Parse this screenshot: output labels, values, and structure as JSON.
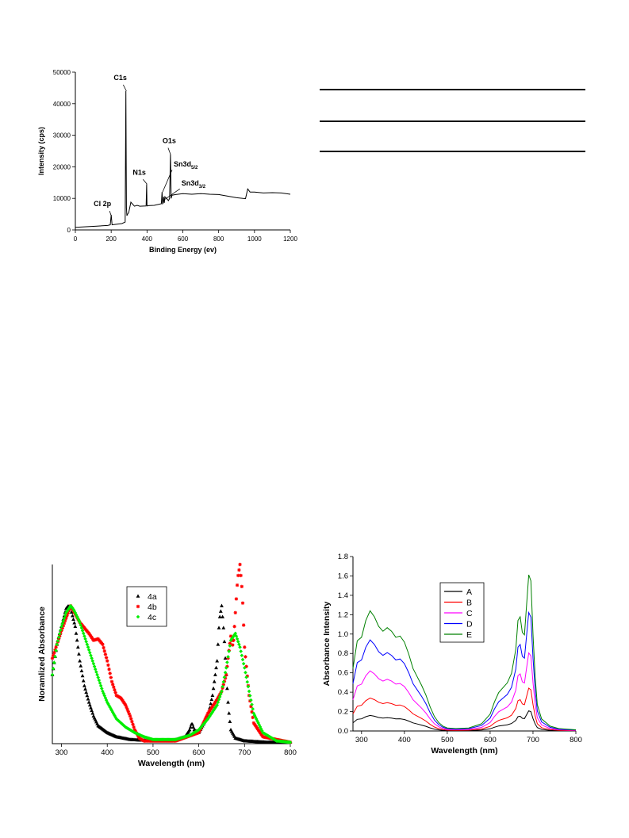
{
  "chart_data": [
    {
      "id": "xps",
      "type": "line",
      "xlabel": "Binding Energy (ev)",
      "ylabel": "Intensity (cps)",
      "xlim": [
        0,
        1200
      ],
      "ylim": [
        0,
        50000
      ],
      "xticks": [
        0,
        200,
        400,
        600,
        800,
        1000,
        1200
      ],
      "yticks": [
        0,
        10000,
        20000,
        30000,
        40000,
        50000
      ],
      "grid": false,
      "annotations": [
        {
          "text": "C1s",
          "sub": "",
          "x": 285,
          "y": 44000
        },
        {
          "text": "O1s",
          "sub": "",
          "x": 531,
          "y": 24000
        },
        {
          "text": "N1s",
          "sub": "",
          "x": 400,
          "y": 14500
        },
        {
          "text": "Sn3d",
          "sub": "5/2",
          "x": 487,
          "y": 12000
        },
        {
          "text": "Sn3d",
          "sub": "3/2",
          "x": 495,
          "y": 9500
        },
        {
          "text": "Cl 2p",
          "sub": "",
          "x": 200,
          "y": 4500
        }
      ],
      "series": [
        {
          "color": "#000000",
          "x": [
            0,
            60,
            120,
            180,
            195,
            200,
            205,
            215,
            260,
            278,
            282,
            285,
            288,
            292,
            298,
            310,
            330,
            345,
            360,
            395,
            398,
            400,
            402,
            405,
            440,
            480,
            484,
            487,
            490,
            493,
            497,
            500,
            520,
            526,
            531,
            535,
            540,
            560,
            600,
            650,
            700,
            750,
            800,
            850,
            900,
            950,
            962,
            975,
            1000,
            1050,
            1100,
            1150,
            1200
          ],
          "y": [
            800,
            1000,
            1200,
            1400,
            1600,
            4800,
            1600,
            1700,
            2000,
            2500,
            44000,
            7000,
            4500,
            5000,
            5500,
            8800,
            7500,
            7800,
            7500,
            7600,
            14500,
            7800,
            7600,
            7700,
            7800,
            8300,
            12000,
            8300,
            8500,
            10500,
            8600,
            10500,
            9300,
            10000,
            24000,
            10000,
            11000,
            11200,
            11500,
            11300,
            11500,
            11300,
            11200,
            10700,
            10200,
            9900,
            13000,
            12000,
            12000,
            11700,
            11800,
            11700,
            11300
          ]
        }
      ]
    },
    {
      "id": "normalized",
      "type": "scatter",
      "xlabel": "Wavelength (nm)",
      "ylabel": "Noramlized Absorbance",
      "xlim": [
        280,
        800
      ],
      "ylim": [
        0,
        1.3
      ],
      "xticks": [
        300,
        400,
        500,
        600,
        700,
        800
      ],
      "yticks": [],
      "grid": false,
      "legend_position": "top-center",
      "series": [
        {
          "name": "4a",
          "color": "#000000",
          "marker": "triangle",
          "x": [
            280,
            290,
            300,
            310,
            315,
            320,
            330,
            340,
            350,
            360,
            370,
            380,
            400,
            420,
            450,
            500,
            540,
            570,
            580,
            585,
            590,
            600,
            620,
            630,
            640,
            645,
            650,
            655,
            660,
            665,
            670,
            680,
            700,
            750,
            800
          ],
          "y": [
            0.5,
            0.72,
            0.85,
            0.98,
            1.0,
            0.98,
            0.85,
            0.6,
            0.42,
            0.3,
            0.2,
            0.13,
            0.08,
            0.05,
            0.03,
            0.02,
            0.02,
            0.05,
            0.1,
            0.15,
            0.1,
            0.08,
            0.2,
            0.35,
            0.6,
            0.9,
            1.0,
            0.8,
            0.5,
            0.25,
            0.1,
            0.04,
            0.02,
            0.01,
            0.01
          ]
        },
        {
          "name": "4b",
          "color": "#ff0000",
          "marker": "star",
          "x": [
            280,
            300,
            320,
            340,
            355,
            360,
            370,
            380,
            390,
            400,
            410,
            420,
            430,
            440,
            450,
            460,
            470,
            480,
            500,
            550,
            600,
            620,
            640,
            650,
            660,
            665,
            670,
            675,
            680,
            685,
            690,
            695,
            700,
            710,
            720,
            740,
            800
          ],
          "y": [
            0.62,
            0.82,
            1.0,
            0.88,
            0.82,
            0.8,
            0.75,
            0.76,
            0.72,
            0.6,
            0.45,
            0.35,
            0.33,
            0.28,
            0.2,
            0.1,
            0.04,
            0.02,
            0.02,
            0.02,
            0.08,
            0.22,
            0.32,
            0.38,
            0.5,
            0.65,
            0.78,
            0.7,
            0.95,
            1.2,
            1.3,
            1.1,
            0.7,
            0.35,
            0.15,
            0.05,
            0.01
          ]
        },
        {
          "name": "4c",
          "color": "#00ee00",
          "marker": "diamond",
          "x": [
            280,
            290,
            300,
            310,
            320,
            325,
            330,
            340,
            350,
            360,
            370,
            380,
            390,
            400,
            410,
            420,
            440,
            460,
            480,
            500,
            520,
            550,
            580,
            600,
            620,
            640,
            650,
            660,
            670,
            680,
            690,
            700,
            710,
            720,
            740,
            770,
            800
          ],
          "y": [
            0.5,
            0.72,
            0.85,
            0.95,
            1.0,
            0.98,
            0.95,
            0.88,
            0.78,
            0.68,
            0.58,
            0.48,
            0.38,
            0.3,
            0.24,
            0.18,
            0.12,
            0.08,
            0.05,
            0.03,
            0.03,
            0.03,
            0.06,
            0.1,
            0.18,
            0.28,
            0.38,
            0.55,
            0.75,
            0.8,
            0.7,
            0.55,
            0.38,
            0.22,
            0.08,
            0.02,
            0.01
          ]
        }
      ]
    },
    {
      "id": "absorbance",
      "type": "line",
      "xlabel": "Wavelength (nm)",
      "ylabel": "Absorbance Intensity",
      "xlim": [
        280,
        800
      ],
      "ylim": [
        0,
        1.8
      ],
      "xticks": [
        300,
        400,
        500,
        600,
        700,
        800
      ],
      "yticks": [
        0.0,
        0.2,
        0.4,
        0.6,
        0.8,
        1.0,
        1.2,
        1.4,
        1.6,
        1.8
      ],
      "ytick_labels": [
        "0.0",
        "0.2",
        "0.4",
        "0.6",
        "0.8",
        "1.0",
        "1.2",
        "1.4",
        "1.6",
        "1.8"
      ],
      "grid": false,
      "legend_position": "top-left",
      "series": [
        {
          "name": "A",
          "color": "#000000",
          "scale": 0.16
        },
        {
          "name": "B",
          "color": "#ff0000",
          "scale": 0.34
        },
        {
          "name": "C",
          "color": "#ff00ff",
          "scale": 0.62
        },
        {
          "name": "D",
          "color": "#0000ff",
          "scale": 0.94
        },
        {
          "name": "E",
          "color": "#008000",
          "scale": 1.24
        }
      ],
      "profile": {
        "x": [
          280,
          290,
          300,
          310,
          320,
          330,
          340,
          350,
          360,
          370,
          380,
          390,
          400,
          410,
          420,
          430,
          440,
          450,
          460,
          470,
          480,
          490,
          500,
          520,
          550,
          580,
          600,
          610,
          620,
          630,
          640,
          650,
          660,
          665,
          670,
          675,
          680,
          685,
          690,
          695,
          700,
          705,
          710,
          720,
          740,
          760,
          800
        ],
        "y": [
          0.52,
          0.75,
          0.78,
          0.92,
          1.0,
          0.95,
          0.87,
          0.83,
          0.86,
          0.83,
          0.78,
          0.79,
          0.74,
          0.64,
          0.52,
          0.45,
          0.38,
          0.3,
          0.2,
          0.12,
          0.07,
          0.04,
          0.025,
          0.02,
          0.025,
          0.06,
          0.14,
          0.24,
          0.32,
          0.36,
          0.4,
          0.48,
          0.68,
          0.92,
          0.95,
          0.82,
          0.8,
          1.05,
          1.3,
          1.25,
          0.8,
          0.45,
          0.22,
          0.1,
          0.04,
          0.02,
          0.01
        ]
      }
    }
  ]
}
